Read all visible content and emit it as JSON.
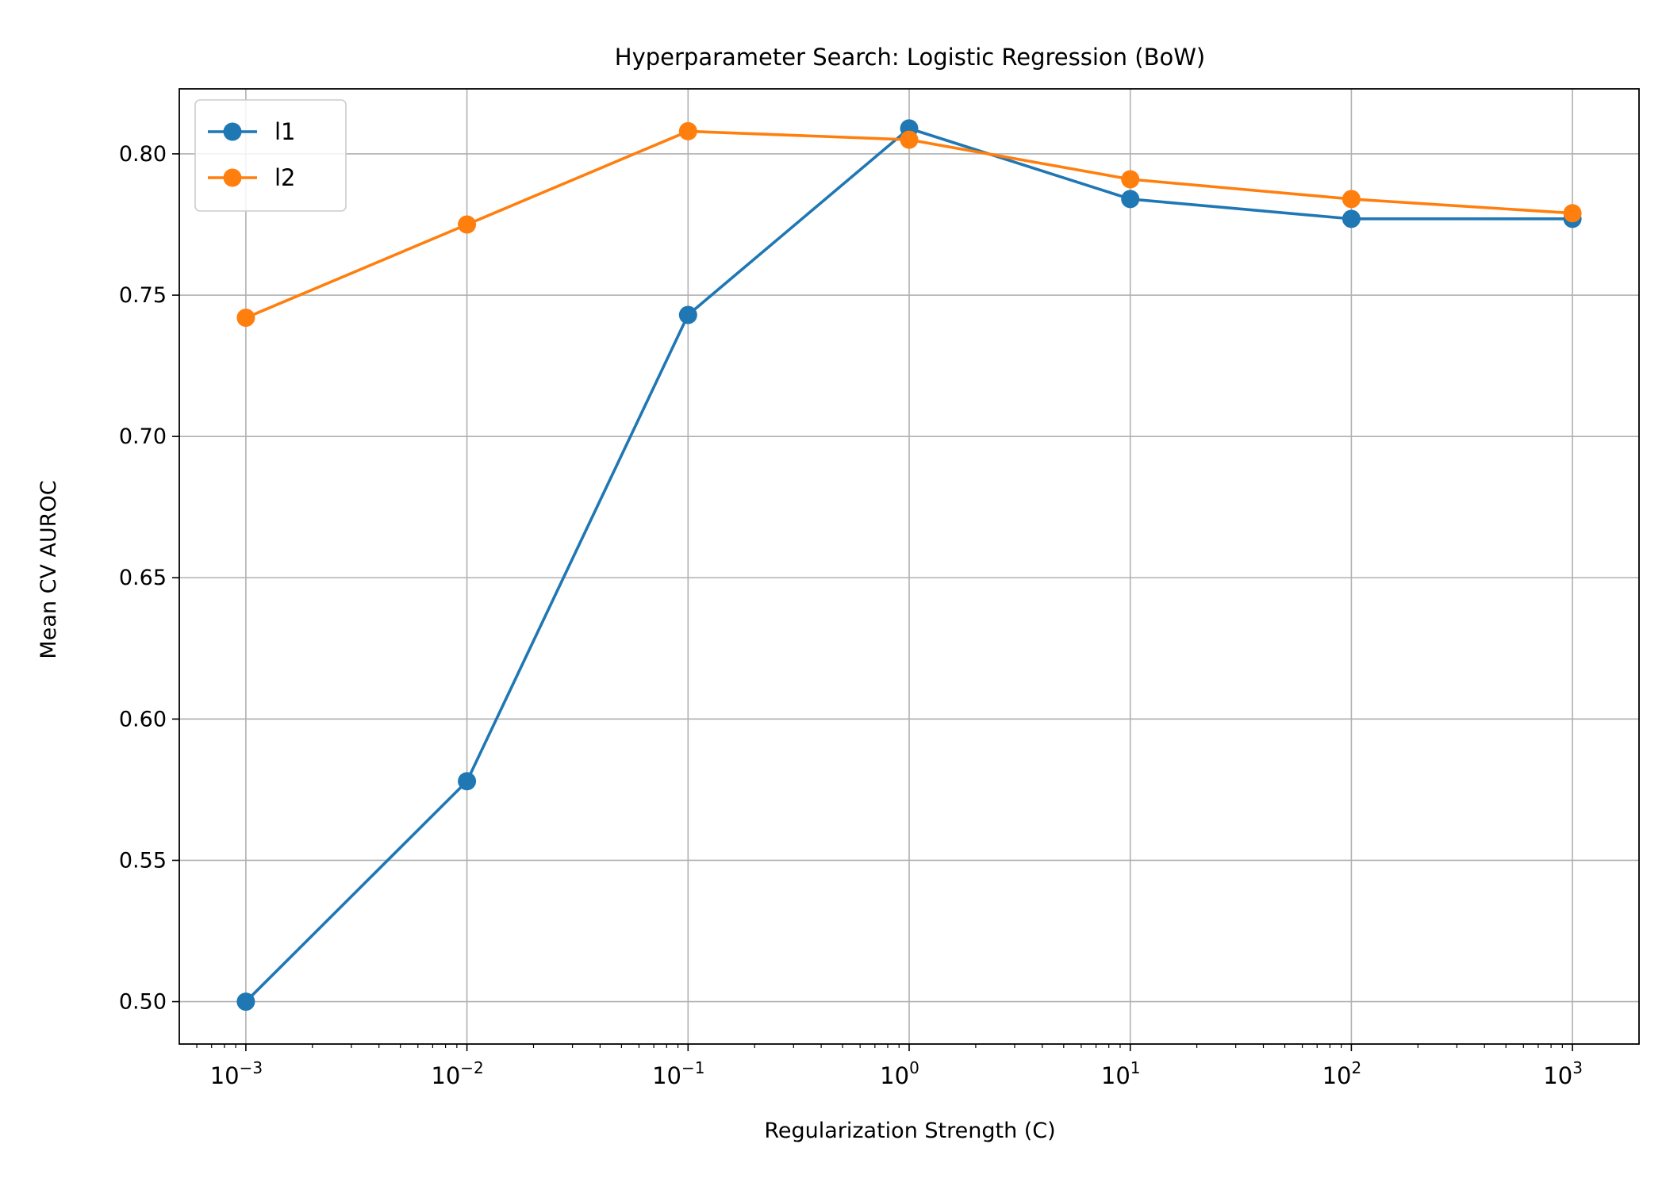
{
  "chart_data": {
    "type": "line",
    "title": "Hyperparameter Search: Logistic Regression (BoW)",
    "xlabel": "Regularization Strength (C)",
    "ylabel": "Mean CV AUROC",
    "x_scale": "log",
    "x": [
      0.001,
      0.01,
      0.1,
      1,
      10,
      100,
      1000
    ],
    "x_tick_labels": [
      {
        "base": "10",
        "exp": "−3"
      },
      {
        "base": "10",
        "exp": "−2"
      },
      {
        "base": "10",
        "exp": "−1"
      },
      {
        "base": "10",
        "exp": "0"
      },
      {
        "base": "10",
        "exp": "1"
      },
      {
        "base": "10",
        "exp": "2"
      },
      {
        "base": "10",
        "exp": "3"
      }
    ],
    "y_ticks": [
      "0.50",
      "0.55",
      "0.60",
      "0.65",
      "0.70",
      "0.75",
      "0.80"
    ],
    "xlim": [
      0.0005,
      2000
    ],
    "ylim": [
      0.485,
      0.823
    ],
    "grid": true,
    "legend_position": "top-left",
    "series": [
      {
        "name": "l1",
        "color": "#1f77b4",
        "values": [
          0.5,
          0.578,
          0.743,
          0.809,
          0.784,
          0.777,
          0.777
        ]
      },
      {
        "name": "l2",
        "color": "#ff7f0e",
        "values": [
          0.742,
          0.775,
          0.808,
          0.805,
          0.791,
          0.784,
          0.779
        ]
      }
    ]
  }
}
